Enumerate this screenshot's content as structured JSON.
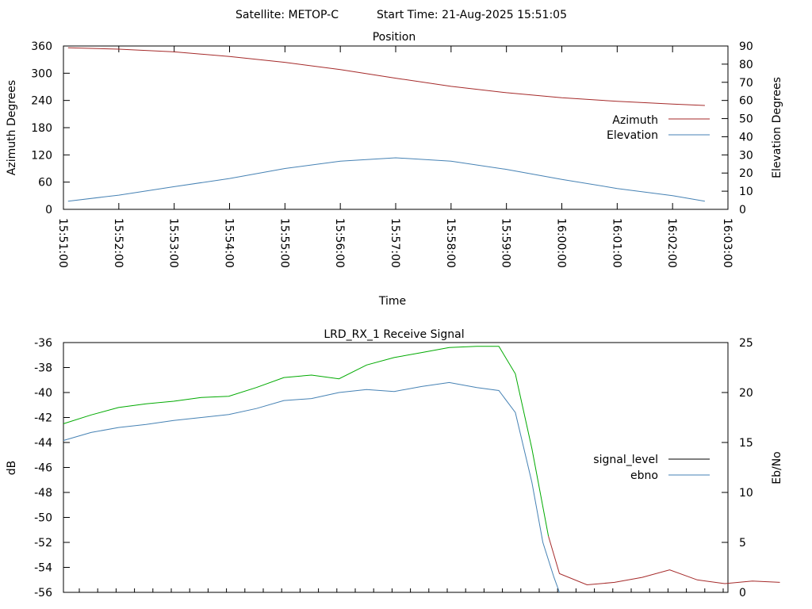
{
  "header": {
    "satellite_label": "Satellite: METOP-C",
    "start_time_label": "Start Time: 21-Aug-2025 15:51:05"
  },
  "chart_data": [
    {
      "type": "line",
      "title": "Position",
      "xlabel": "Time",
      "ylabel": "Azimuth Degrees",
      "y2label": "Elevation Degrees",
      "ylim": [
        0,
        360
      ],
      "y2lim": [
        0,
        90
      ],
      "yticks": [
        "0",
        "60",
        "120",
        "180",
        "240",
        "300",
        "360"
      ],
      "y2ticks": [
        "0",
        "10",
        "20",
        "30",
        "40",
        "50",
        "60",
        "70",
        "80",
        "90"
      ],
      "xticks": [
        "15:51:00",
        "15:52:00",
        "15:53:00",
        "15:54:00",
        "15:55:00",
        "15:56:00",
        "15:57:00",
        "15:58:00",
        "15:59:00",
        "16:00:00",
        "16:01:00",
        "16:02:00",
        "16:03:00"
      ],
      "legend_position": "right",
      "grid": false,
      "series": [
        {
          "name": "Azimuth",
          "axis": "left",
          "color": "#a52a2a",
          "x": [
            "15:51:05",
            "15:52:00",
            "15:53:00",
            "15:54:00",
            "15:55:00",
            "15:56:00",
            "15:57:00",
            "15:58:00",
            "15:59:00",
            "16:00:00",
            "16:01:00",
            "16:02:00",
            "16:02:35"
          ],
          "y": [
            356,
            353,
            347,
            337,
            324,
            308,
            289,
            271,
            257,
            246,
            238,
            232,
            229
          ]
        },
        {
          "name": "Elevation",
          "axis": "right",
          "color": "#4682b4",
          "x": [
            "15:51:05",
            "15:52:00",
            "15:53:00",
            "15:54:00",
            "15:55:00",
            "15:56:00",
            "15:57:00",
            "15:58:00",
            "15:59:00",
            "16:00:00",
            "16:01:00",
            "16:02:00",
            "16:02:35"
          ],
          "y": [
            4.5,
            7.8,
            12.5,
            17,
            22.5,
            26.5,
            28.4,
            26.5,
            22,
            16.5,
            11.5,
            7.5,
            4.5
          ]
        }
      ]
    },
    {
      "type": "line",
      "title": "LRD_RX_1 Receive Signal",
      "xlabel": "",
      "ylabel": "dB",
      "y2label": "Eb/No",
      "ylim": [
        -56,
        -36
      ],
      "y2lim": [
        0,
        25
      ],
      "yticks": [
        "-56",
        "-54",
        "-52",
        "-50",
        "-48",
        "-46",
        "-44",
        "-42",
        "-40",
        "-38",
        "-36"
      ],
      "y2ticks": [
        "0",
        "5",
        "10",
        "15",
        "20",
        "25"
      ],
      "legend_position": "right",
      "grid": false,
      "legend": [
        {
          "name": "signal_level",
          "color": "#000000"
        },
        {
          "name": "ebno",
          "color": "#4682b4"
        }
      ],
      "series": [
        {
          "name": "signal_level",
          "axis": "left",
          "color_above": "#00aa00",
          "color_below": "#a52a2a",
          "x_minutes": [
            0.0,
            0.5,
            1.0,
            1.5,
            2.0,
            2.5,
            3.0,
            3.5,
            4.0,
            4.5,
            5.0,
            5.5,
            6.0,
            6.5,
            7.0,
            7.5,
            7.9,
            8.2,
            8.5,
            8.8,
            9.0,
            9.5,
            10.0,
            10.5,
            11.0,
            11.5,
            12.0,
            12.5,
            13.0
          ],
          "y": [
            -42.5,
            -41.8,
            -41.2,
            -40.9,
            -40.7,
            -40.4,
            -40.3,
            -39.6,
            -38.8,
            -38.6,
            -38.9,
            -37.8,
            -37.2,
            -36.8,
            -36.4,
            -36.3,
            -36.3,
            -38.5,
            -44.5,
            -51.5,
            -54.5,
            -55.4,
            -55.2,
            -54.8,
            -54.2,
            -55.0,
            -55.3,
            -55.1,
            -55.2
          ]
        },
        {
          "name": "ebno",
          "axis": "right",
          "color": "#4682b4",
          "x_minutes": [
            0.0,
            0.5,
            1.0,
            1.5,
            2.0,
            2.5,
            3.0,
            3.5,
            4.0,
            4.5,
            5.0,
            5.5,
            6.0,
            6.5,
            7.0,
            7.5,
            7.9,
            8.2,
            8.5,
            8.7,
            8.9,
            9.0
          ],
          "y": [
            15.2,
            16.0,
            16.5,
            16.8,
            17.2,
            17.5,
            17.8,
            18.4,
            19.2,
            19.4,
            20.0,
            20.3,
            20.1,
            20.6,
            21.0,
            20.5,
            20.2,
            18.0,
            11.0,
            5.0,
            1.5,
            0
          ]
        }
      ]
    }
  ]
}
